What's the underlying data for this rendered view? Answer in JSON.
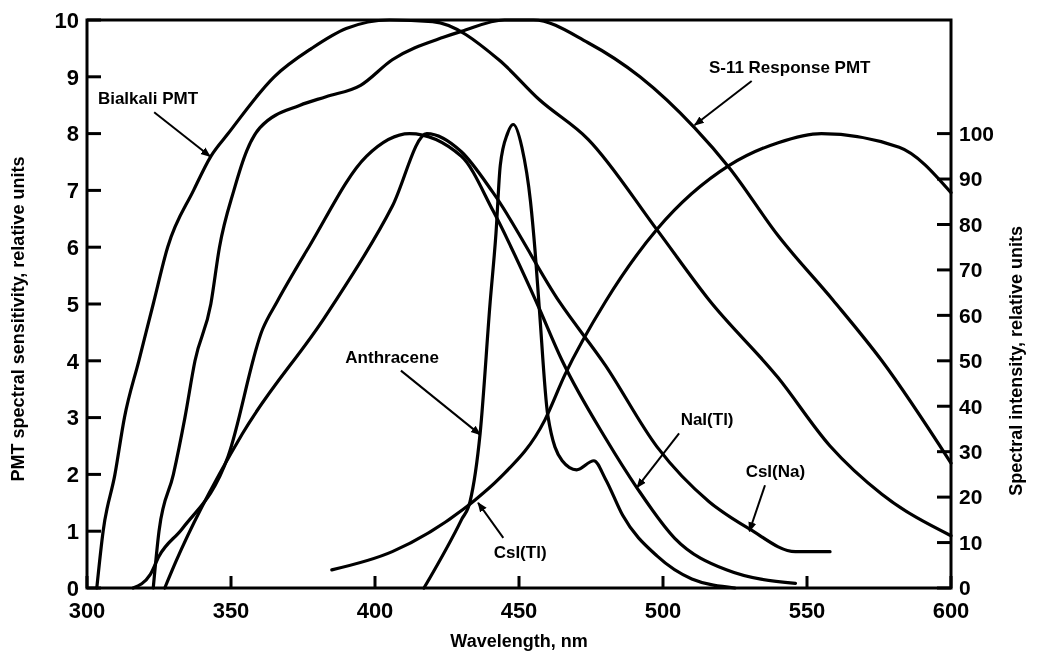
{
  "chart_data": {
    "type": "line",
    "xlabel": "Wavelength, nm",
    "ylabel": "PMT spectral sensitivity, relative units",
    "y2label": "Spectral intensity, relative units",
    "xlim": [
      300,
      600
    ],
    "xticks": [
      300,
      350,
      400,
      450,
      500,
      550,
      600
    ],
    "ylim": [
      0,
      10
    ],
    "yticks": [
      0,
      1,
      2,
      3,
      4,
      5,
      6,
      7,
      8,
      9,
      10
    ],
    "y2lim": [
      0,
      125
    ],
    "y2ticks": [
      0,
      10,
      20,
      30,
      40,
      50,
      60,
      70,
      80,
      90,
      100
    ],
    "series": [
      {
        "color": "#000000",
        "x": [
          303.4,
          305.6,
          309.7,
          313,
          318,
          323,
          328,
          337,
          343,
          349,
          365,
          378,
          390,
          405,
          420,
          443,
          457,
          474,
          498,
          516,
          540,
          558,
          576,
          600
        ],
        "values": [
          0,
          1,
          2,
          3,
          4,
          5,
          6,
          7,
          7.6,
          8,
          9,
          9.5,
          9.85,
          10,
          9.97,
          9.3,
          8.6,
          7.9,
          6.3,
          5.07,
          3.7,
          2.5,
          1.65,
          0.92
        ]
      },
      {
        "color": "#000000",
        "x": [
          323,
          325,
          330,
          334,
          337.5,
          343,
          346,
          351,
          355.5,
          360,
          374,
          383,
          395,
          406,
          424,
          430,
          445,
          455,
          474,
          492,
          511,
          523,
          540,
          559,
          576,
          600
        ],
        "values": [
          0,
          1,
          2,
          3,
          4,
          5,
          6,
          7,
          7.7,
          8.1,
          8.5,
          8.65,
          8.85,
          9.3,
          9.7,
          9.8,
          10,
          10,
          9.6,
          9,
          8.1,
          7.4,
          6.2,
          5.07,
          4,
          2.2
        ]
      },
      {
        "color": "#000000",
        "axis": "y2",
        "x": [
          417,
          430,
          433,
          436.5,
          440,
          442,
          443.5,
          446,
          448,
          451,
          454,
          455.6,
          457,
          460,
          465,
          470,
          476,
          480,
          486,
          498,
          510,
          525
        ],
        "values": [
          0,
          15,
          19,
          34,
          63,
          78,
          93,
          100,
          102,
          97,
          85,
          74,
          62,
          38,
          28,
          26,
          28,
          24,
          16,
          7,
          2,
          0
        ]
      },
      {
        "color": "#000000",
        "axis": "y2",
        "x": [
          385,
          406,
          434,
          443,
          459,
          466,
          480,
          498,
          523,
          540,
          555,
          582,
          600
        ],
        "values": [
          4,
          8,
          19,
          24,
          37,
          47,
          63,
          79,
          93,
          98,
          100,
          97,
          87
        ]
      },
      {
        "color": "#000000",
        "axis": "y2",
        "x": [
          316,
          322,
          325,
          333,
          349,
          361,
          366,
          377,
          397,
          412,
          430,
          441,
          456,
          465,
          480,
          491,
          504,
          522,
          546
        ],
        "values": [
          0,
          3,
          7,
          13,
          29,
          57,
          63,
          75,
          95,
          100,
          95,
          83,
          63,
          50,
          33,
          22,
          11,
          4,
          1
        ]
      },
      {
        "color": "#000000",
        "axis": "y2",
        "x": [
          327,
          331,
          354,
          383,
          406,
          418,
          430,
          441,
          464,
          480,
          498,
          516,
          530,
          546,
          558
        ],
        "values": [
          0,
          6,
          34,
          60,
          84,
          100,
          96,
          87,
          63,
          49,
          31,
          19,
          13,
          8,
          8
        ]
      }
    ],
    "annotations": [
      {
        "text": "Bialkali PMT",
        "x": 342.7,
        "y": 7.6
      },
      {
        "text": "S-11 Response PMT",
        "x": 511,
        "y": 8.15
      },
      {
        "text": "Anthracene",
        "x": 436.5,
        "y": 2.7
      },
      {
        "text": "CsI(Tl)",
        "x": 435.8,
        "y": 1.5
      },
      {
        "text": "NaI(Tl)",
        "x": 491,
        "y": 1.77
      },
      {
        "text": "CsI(Na)",
        "x": 530,
        "y": 1.0
      }
    ]
  }
}
